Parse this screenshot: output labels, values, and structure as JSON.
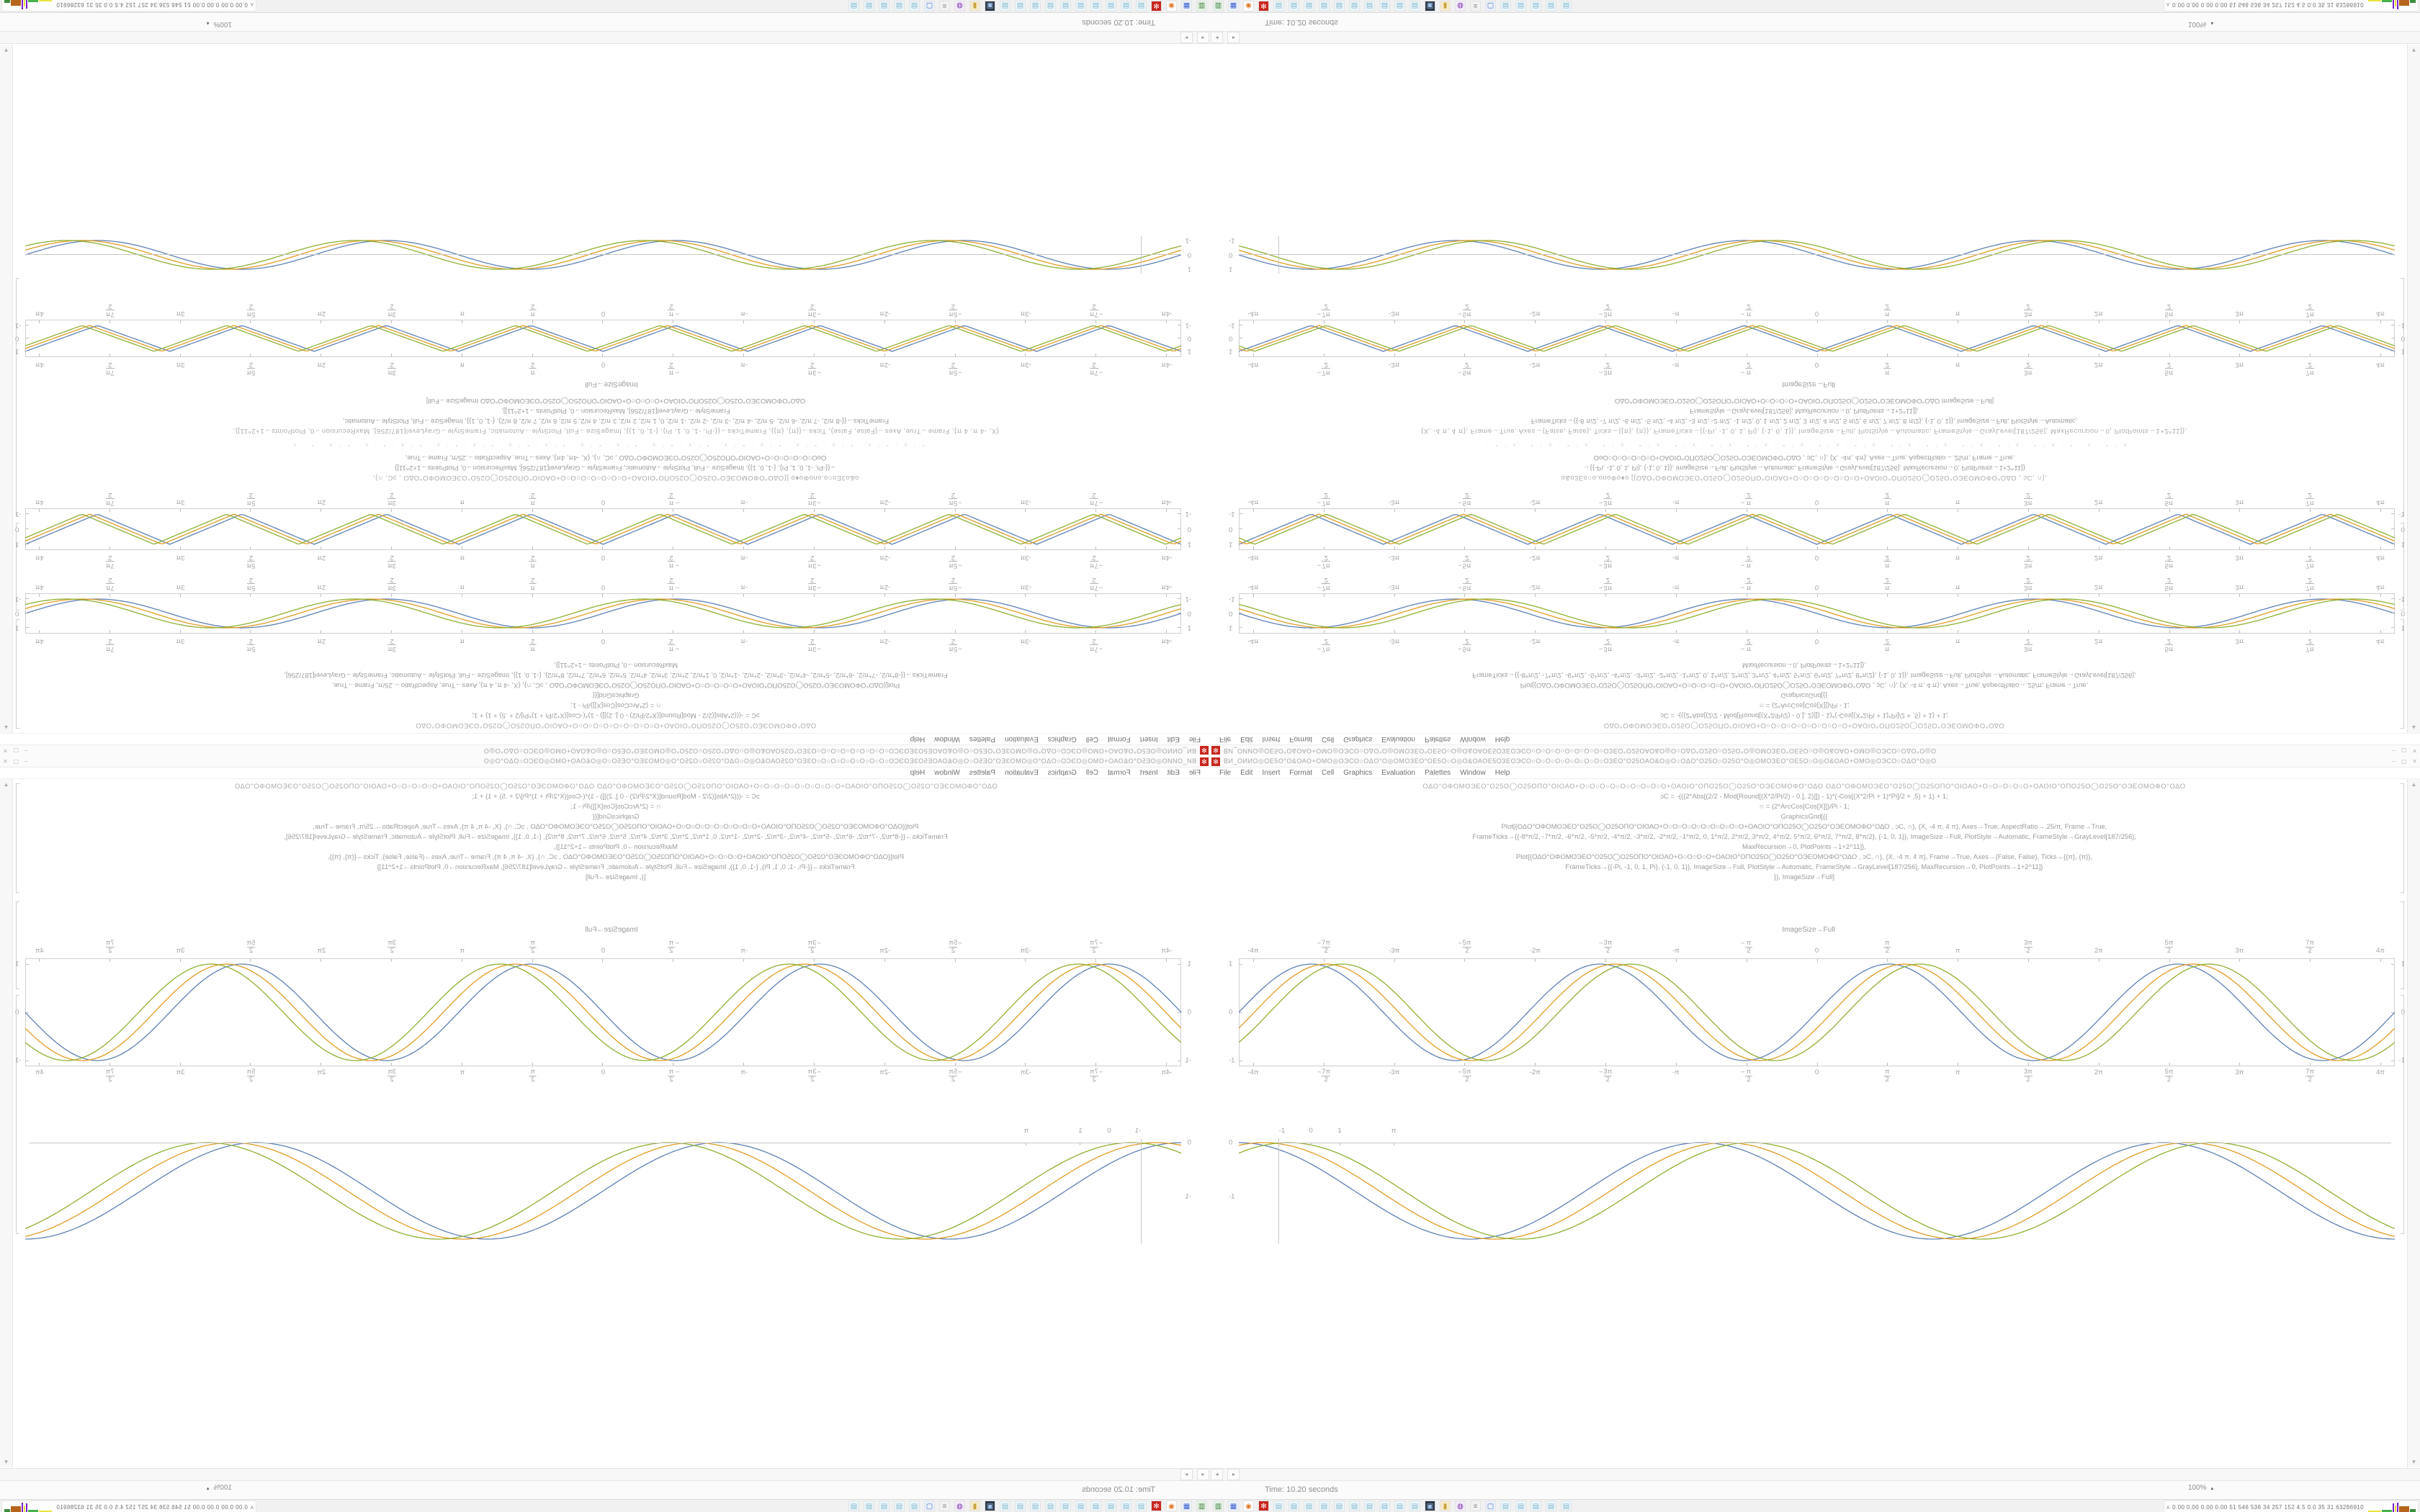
{
  "window": {
    "title": "ВИ_ОИИО◎ОЕ5О°О&ОАО+ОМО◎ОЭСО○ОΔО°О◎ОМОЗЕО°ОЕ5О○О◎О&ОАОЕ5ОЗЕОЭСО○О○О○О○О○О○О○О○ОЗЕО°О25ОАО&О◎О○ОΔО°О25О○О25О°О◎ОМОЗЕО°ОЕ5О○О◎О&ОАО+ОМО◎ОЭСО○ОΔО°О◎О",
    "app_icon_glyph": "✻",
    "minimize_label": "–",
    "maximize_label": "▢",
    "close_label": "✕"
  },
  "menu": [
    "File",
    "Edit",
    "Insert",
    "Format",
    "Cell",
    "Graphics",
    "Evaluation",
    "Palettes",
    "Window",
    "Help"
  ],
  "status": {
    "time_label": "Time: 10.20 seconds",
    "zoom_label": "100%",
    "zoom_arrow": "▴"
  },
  "scrollbar": {
    "left_arrow": "◂",
    "right_arrow": "▸",
    "up_arrow": "▲",
    "down_arrow": "▼"
  },
  "taskbar": {
    "tray_collapse": "ʌ",
    "tray_text": "0.00 0.00 0.00 0.00  51  546  536  34  257  152  4.5  0.0  35  31  63286910",
    "icons": [
      {
        "name": "green-drive-icon",
        "glyph": "▥",
        "bg": "#e7f3e7",
        "c": "#3c7d3c"
      },
      {
        "name": "floppy-64-icon",
        "glyph": "▦",
        "bg": "#eef3fb",
        "c": "#3a5fcd"
      },
      {
        "name": "firefox-icon",
        "glyph": "◉",
        "bg": "#ffffff",
        "c": "#e07b2a"
      },
      {
        "name": "red-gear-icon",
        "glyph": "✻",
        "bg": "#c8271f",
        "c": "#ffffff"
      },
      {
        "name": "notepad-icon",
        "glyph": "▤",
        "bg": "#eaf6fb",
        "c": "#85b8cc"
      },
      {
        "name": "notepad-icon",
        "glyph": "▤",
        "bg": "#eaf6fb",
        "c": "#85b8cc"
      },
      {
        "name": "notepad-icon",
        "glyph": "▤",
        "bg": "#eaf6fb",
        "c": "#85b8cc"
      },
      {
        "name": "notepad-icon",
        "glyph": "▤",
        "bg": "#eaf6fb",
        "c": "#85b8cc"
      },
      {
        "name": "notepad-icon",
        "glyph": "▤",
        "bg": "#eaf6fb",
        "c": "#85b8cc"
      },
      {
        "name": "notepad-icon",
        "glyph": "▤",
        "bg": "#eaf6fb",
        "c": "#85b8cc"
      },
      {
        "name": "notepad-icon",
        "glyph": "▤",
        "bg": "#eaf6fb",
        "c": "#85b8cc"
      },
      {
        "name": "notepad-icon",
        "glyph": "▤",
        "bg": "#eaf6fb",
        "c": "#85b8cc"
      },
      {
        "name": "notepad-icon",
        "glyph": "▤",
        "bg": "#eaf6fb",
        "c": "#85b8cc"
      },
      {
        "name": "notepad-icon",
        "glyph": "▤",
        "bg": "#eaf6fb",
        "c": "#85b8cc"
      },
      {
        "name": "media-player-icon",
        "glyph": "▣",
        "bg": "#2e3a4a",
        "c": "#9fc3e8"
      },
      {
        "name": "folder-icon",
        "glyph": "▮",
        "bg": "#f5e9c8",
        "c": "#c8a23a"
      },
      {
        "name": "purple-app-icon",
        "glyph": "◍",
        "bg": "#f3eaf9",
        "c": "#7a2fa8"
      },
      {
        "name": "scroll-icon",
        "glyph": "≡",
        "bg": "#f2f2f2",
        "c": "#8a8a8a"
      },
      {
        "name": "window-app-icon",
        "glyph": "▢",
        "bg": "#eaf0fa",
        "c": "#4a7ab8"
      },
      {
        "name": "notepad-icon",
        "glyph": "▤",
        "bg": "#eaf6fb",
        "c": "#85b8cc"
      },
      {
        "name": "notepad-icon",
        "glyph": "▤",
        "bg": "#eaf6fb",
        "c": "#85b8cc"
      },
      {
        "name": "notepad-icon",
        "glyph": "▤",
        "bg": "#eaf6fb",
        "c": "#85b8cc"
      },
      {
        "name": "notepad-icon",
        "glyph": "▤",
        "bg": "#eaf6fb",
        "c": "#85b8cc"
      },
      {
        "name": "notepad-icon",
        "glyph": "▤",
        "bg": "#eaf6fb",
        "c": "#85b8cc"
      }
    ],
    "minigraphs": [
      {
        "name": "cpu-yellow",
        "color": "#e8e23c",
        "w": 18,
        "h": 2
      },
      {
        "name": "net-green",
        "color": "#46b24a",
        "w": 14,
        "h": 3
      },
      {
        "name": "spike-violet",
        "color": "#7a22cc",
        "w": 2,
        "h": 12
      },
      {
        "name": "spike-yellow",
        "color": "#e8e23c",
        "w": 2,
        "h": 9
      },
      {
        "name": "spike-violet2",
        "color": "#7a22cc",
        "w": 2,
        "h": 13
      },
      {
        "name": "disk-brown",
        "color": "#b5651d",
        "w": 14,
        "h": 8
      },
      {
        "name": "mem-green",
        "color": "#3c8d3c",
        "w": 8,
        "h": 4
      }
    ]
  },
  "label_imagesize": "ImageSize→Full",
  "code_a": [
    "ΟΔΟ°ΟΦΟΜΟЭΕΟ°Ο25Ο◯Ο25ΟΠΟ°ΟΙΟΑΟ+Ο○Ο○Ο○Ο○Ο○Ο○Ο○Ο○Ο+ΟΑΟΙΟ°ΟΠΟ25Ο◯Ο25Ο°ΟЭΕΟΜΟΦΟ°ΟΔΟ  ΟΔΟ°ΟΦΟΜΟЭΕΟ°Ο25Ο◯Ο25ΟΠΟ°ΟΙΟΑΟ+Ο○Ο○Ο○Ο○Ο+ΟΑΟΙΟ°ΟΠΟ25Ο◯Ο25Ο°ΟЭΕΟΜΟΦΟ°ΟΔΟ",
    "ɔC = -(((2*Abs[(2/2 - Mod[Round[(X*2/Pi/2) - 0.], 2)]]) - 1)*(-Cos[(X*2/Pi + 1)*Pi]/2 + .5) + 1) + 1;",
    "∩ = (2*ArcCos[Cos[X]])/Pi - 1;",
    "GraphicsGrid[{{",
    "Plot[{ΟΔΟ°ΟΦΟΜΟЭΕΟ°Ο25Ο◯Ο25ΟΠΟ°ΟΙΟΑΟ+Ο○Ο○Ο○Ο○Ο○Ο○Ο○Ο○Ο+ΟΑΟΙΟ°ΟΠΟ25Ο◯Ο25Ο°ΟЭΕΟΜΟΦΟ°ΟΔΟ , ɔC, ∩}, {X, -4 π, 4 π}, Axes→True, AspectRatio→.25/π, Frame→True,",
    "FrameTicks→{{-8*π/2, -7*π/2, -6*π/2, -5*π/2, -4*π/2, -3*π/2, -2*π/2, -1*π/2, 0, 1*π/2, 2*π/2, 3*π/2, 4*π/2, 5*π/2, 6*π/2, 7*π/2, 8*π/2}, {-1, 0, 1}}, ImageSize→Full, PlotStyle→Automatic, FrameStyle→GrayLevel[187/256],",
    "MaxRecursion→0, PlotPoints→1+2^11]},",
    "Plot[{ΟΔΟ°ΟΦΟΜΟЭΕΟ°Ο25Ο◯Ο25ΟΠΟ°ΟΙΟΑΟ+Ο○Ο○Ο○Ο+ΟΑΟΙΟ°ΟΠΟ25Ο◯Ο25Ο°ΟЭΕΟΜΟΦΟ°ΟΔΟ , ɔC, ∩}, {X, -4 π, 4 π}, Frame→True, Axes→{False, False}, Ticks→{{π}, {π}},",
    "FrameTicks→{{-Pi, -1, 0, 1, Pi}, {-1, 0, 1}}, ImageSize→Full, PlotStyle→Automatic, FrameStyle→GrayLevel[187/256], MaxRecursion→0, PlotPoints→1+2^11]}",
    "}}, ImageSize→Full]"
  ],
  "code_b1": [
    "ΟΔΟ°ΟΦΟΜΟЭΕΟ°Ο25Ο◯Ο25ΟΠΟ°ΟΙΟΑΟ+Ο○Ο○Ο○Ο○Ο○Ο○Ο○Ο○Ο+ΟΑΟΙΟ°ΟΠΟ25Ο◯Ο25Ο°ΟЭΕΟΜΟΦΟ°ΟΔΟ",
    "ɔC = -(((2*Abs[(2/2 - Mod[Round[(X*2/Pi/2) - 0.], 2)]]) - 1)*(-Cos[(X*2/Pi + 1)*Pi]/2 + .5) + 1) + 1;",
    "∩ = (2*ArcCos[Cos[X]])/Pi - 1;",
    "GraphicsGrid[{{",
    "Plot[{ΟΔΟ°ΟΦΟΜΟЭΕΟ°Ο25Ο◯Ο25ΟΠΟ°ΟΙΟΑΟ+Ο○Ο○Ο○Ο○Ο+ΟΑΟΙΟ°ΟΠΟ25Ο◯Ο25Ο°ΟЭΕΟΜΟΦΟ°ΟΔΟ , ɔC, ∩}, {X, -4 π, 4 π}, Axes→True, AspectRatio→.25/π, Frame→True,",
    "FrameTicks→{{-8*π/2, -7*π/2, -6*π/2, -5*π/2, -4*π/2, -3*π/2, -2*π/2, -1*π/2, 0, 1*π/2, 2*π/2, 3*π/2, 4*π/2, 5*π/2, 6*π/2, 7*π/2, 8*π/2}, {-1, 0, 1}}, ImageSize→Full, PlotStyle→Automatic, FrameStyle→GrayLevel[187/256],",
    "MaxRecursion→0, PlotPoints→1+2^11]},"
  ],
  "code_b2": [
    "o&o3Eo○o,onoΦo♦o  [{ΟΔΟ°ΟΦΟΜΟЭΕΟ°Ο25Ο◯Ο25ΟΠΟ°ΟΙΟΑΟ+Ο○Ο○Ο○Ο○Ο○Ο○Ο+ΟΑΟΙΟ°ΟΠΟ25Ο◯Ο25Ο°ΟЭΕΟΜΟΦΟ°ΟΔΟ , ɔC, ∩},",
    "→{{-Pi, -1, 0, 1, Pi}, {-1, 0, 1}}, ImageSize→Full, PlotStyle→Automatic, FrameStyle→GrayLevel[187/256], MaxRecursion→0, PlotPoints→1+2^11]}",
    "ΟοΟ○Ο○Ο○Ο○Ο○Ο+ΟΑΟΙΟ°ΟΠΟ25Ο◯Ο25Ο°ΟЭΕΟΜΟΦΟ°ΟΔΟ  , ɔC, ∩}, {X, -4π, 4π}, Axes→True, AspectRatio→.25/π, Frame→True,"
  ],
  "speckle_line": "· ° ˚ ᵒ · ° ˚ ᵒ · ° ˚ ᵒ · ° ˚ ᵒ · ° ˚ ᵒ · ° ˚ ᵒ · ° ˚ ᵒ · ° ˚ ᵒ · ° ˚ ᵒ · ° ˚ ᵒ · ° ˚ ᵒ · ° ˚ ᵒ · ° ˚ ᵒ · ° ˚ ᵒ · ° ˚ ᵒ · ° ˚ ᵒ · ° ˚ ᵒ · ° ˚ ᵒ",
  "code_b3": [
    "{X, -4 π, 4 π}, Frame→True, Axes→{False, False}, Ticks→{{π}, {π}}, FrameTicks→{{-Pi, -1, 0, 1, Pi}, {-1, 0, 1}}, ImageSize→Full, PlotStyle→Automatic, FrameStyle→GrayLevel[187/256], MaxRecursion→0, PlotPoints→1+2^11]},",
    "FrameTicks→{{-8 π/2, -7 π/2, -6 π/2, -5 π/2, -4 π/2, -3 π/2, -2 π/2, -1 π/2, 0, 1 π/2, 2 π/2, 3 π/2, 4 π/2, 5 π/2, 6 π/2, 7 π/2, 8 π/2}, {-1, 0, 1}}, ImageSize→Full, PlotStyle→Automatic,",
    "FrameStyle→GrayLevel[187/256], MaxRecursion→0, PlotPoints→1+2^11]],",
    "ΟΔΟ°ΟΦΟΜΟЭΕΟ°Ο25Ο◯Ο25ΟΠΟ°ΟΙΟΑΟ+Ο○Ο○Ο○Ο+ΟΑΟΙΟ°ΟΠΟ25Ο◯Ο25Ο°ΟЭΕΟΜΟΦΟ°ΟΔΟ ImageSize→Full]"
  ],
  "chart_data": [
    {
      "id": "sine_framed",
      "type": "line",
      "title": "",
      "xlabel": "X",
      "ylabel": "",
      "x_range_label": [
        "-4π",
        "4π"
      ],
      "x_ticks": [
        "-4π",
        "-7π/2",
        "-3π",
        "-5π/2",
        "-2π",
        "-3π/2",
        "-π",
        "-π/2",
        "0",
        "π/2",
        "π",
        "3π/2",
        "2π",
        "5π/2",
        "3π",
        "7π/2",
        "4π"
      ],
      "y_ticks": [
        "1",
        "0",
        "-1"
      ],
      "ylim": [
        -1,
        1
      ],
      "grid": false,
      "frame": true,
      "periods": 4,
      "series": [
        {
          "name": "wave-blue",
          "fn": "sin",
          "phase": 0,
          "color": "#5e81b5"
        },
        {
          "name": "wave-orange",
          "fn": "sin",
          "phase": 0.28,
          "color": "#e19c24"
        },
        {
          "name": "wave-green",
          "fn": "sin",
          "phase": 0.56,
          "color": "#8fb032"
        }
      ]
    },
    {
      "id": "triangle_framed",
      "type": "line",
      "title": "",
      "xlabel": "X",
      "ylabel": "",
      "x_ticks": [
        "-4π",
        "-7π/2",
        "-3π",
        "-5π/2",
        "-2π",
        "-3π/2",
        "-π",
        "-π/2",
        "0",
        "π/2",
        "π",
        "3π/2",
        "2π",
        "5π/2",
        "3π",
        "7π/2",
        "4π"
      ],
      "y_ticks": [
        "1",
        "0",
        "-1"
      ],
      "ylim": [
        -1,
        1
      ],
      "grid": false,
      "frame": true,
      "periods": 8,
      "series": [
        {
          "name": "tri-blue",
          "fn": "tri",
          "phase": 0,
          "color": "#5e81b5"
        },
        {
          "name": "tri-orange",
          "fn": "tri",
          "phase": 0.28,
          "color": "#e19c24"
        },
        {
          "name": "tri-green",
          "fn": "tri",
          "phase": 0.56,
          "color": "#8fb032"
        }
      ]
    },
    {
      "id": "cos_axes",
      "type": "line",
      "title": "",
      "xlabel": "X",
      "ylabel": "",
      "x_ticks": [
        "-1",
        "0",
        "1",
        "π"
      ],
      "y_ticks": [
        "0",
        "-1"
      ],
      "ylim": [
        -2,
        0
      ],
      "grid": false,
      "frame": false,
      "periods": 2.5,
      "series": [
        {
          "name": "cos-blue",
          "fn": "cosdown",
          "phase": 0,
          "color": "#5e81b5"
        },
        {
          "name": "cos-orange",
          "fn": "cosdown",
          "phase": 0.28,
          "color": "#e19c24"
        },
        {
          "name": "cos-green",
          "fn": "cosdown",
          "phase": 0.56,
          "color": "#8fb032"
        }
      ]
    },
    {
      "id": "sine_plain",
      "type": "line",
      "title": "",
      "xlabel": "X",
      "ylabel": "",
      "x_ticks": [],
      "y_ticks": [
        "1",
        "0",
        "-1"
      ],
      "ylim": [
        -1,
        1
      ],
      "grid": false,
      "frame": false,
      "periods": 4,
      "series": [
        {
          "name": "wave-blue",
          "fn": "sin",
          "phase": 0,
          "color": "#5e81b5"
        },
        {
          "name": "wave-orange",
          "fn": "sin",
          "phase": 0.28,
          "color": "#e19c24"
        },
        {
          "name": "wave-green",
          "fn": "sin",
          "phase": 0.56,
          "color": "#8fb032"
        }
      ]
    }
  ],
  "variants": {
    "A": {
      "blocks": [
        {
          "type": "code",
          "ref": "code_a"
        },
        {
          "type": "gap",
          "h": 60
        },
        {
          "type": "label"
        },
        {
          "type": "gap",
          "h": 8
        },
        {
          "type": "plot",
          "kind": "sine_framed",
          "h": 150
        },
        {
          "type": "gap",
          "h": 52
        },
        {
          "type": "plot",
          "kind": "cos_axes",
          "h": 150
        }
      ]
    },
    "B": {
      "blocks": [
        {
          "type": "code",
          "ref": "code_b1"
        },
        {
          "type": "gap",
          "h": 10
        },
        {
          "type": "plot",
          "kind": "sine_framed",
          "h": 56
        },
        {
          "type": "gap",
          "h": 14
        },
        {
          "type": "plot",
          "kind": "triangle_framed",
          "h": 58
        },
        {
          "type": "gap",
          "h": 16
        },
        {
          "type": "code",
          "ref": "code_b2"
        },
        {
          "type": "gap",
          "h": 8
        },
        {
          "type": "speckle"
        },
        {
          "type": "gap",
          "h": 8
        },
        {
          "type": "code",
          "ref": "code_b3"
        },
        {
          "type": "gap",
          "h": 10
        },
        {
          "type": "label"
        },
        {
          "type": "gap",
          "h": 6
        },
        {
          "type": "plot",
          "kind": "triangle_framed",
          "h": 52
        },
        {
          "type": "gap",
          "h": 16
        },
        {
          "type": "plot",
          "kind": "sine_plain",
          "h": 56
        }
      ]
    }
  }
}
